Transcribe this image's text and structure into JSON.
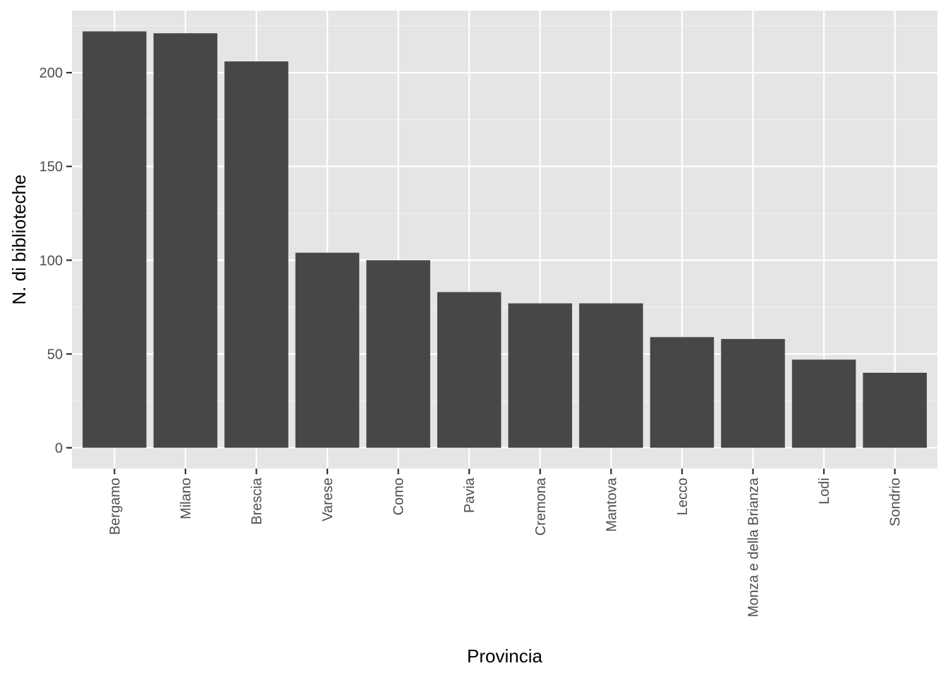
{
  "chart_data": {
    "type": "bar",
    "title": "",
    "xlabel": "Provincia",
    "ylabel": "N. di biblioteche",
    "categories": [
      "Bergamo",
      "Milano",
      "Brescia",
      "Varese",
      "Como",
      "Pavia",
      "Cremona",
      "Mantova",
      "Lecco",
      "Monza e della Brianza",
      "Lodi",
      "Sondrio"
    ],
    "values": [
      222,
      221,
      206,
      104,
      100,
      83,
      77,
      77,
      59,
      58,
      47,
      40
    ],
    "ylim": [
      -11.1,
      233.1
    ],
    "yticks": [
      0,
      50,
      100,
      150,
      200
    ],
    "ytick_labels": [
      "0",
      "50",
      "100",
      "150",
      "200"
    ],
    "grid": true,
    "legend": "none",
    "colors": {
      "bar": "#474747",
      "panel_background": "#e5e5e5",
      "grid_major": "#ffffff",
      "grid_minor": "#f2f2f2",
      "tick": "#333333",
      "tick_label": "#4d4d4d",
      "axis_title": "#000000"
    }
  }
}
